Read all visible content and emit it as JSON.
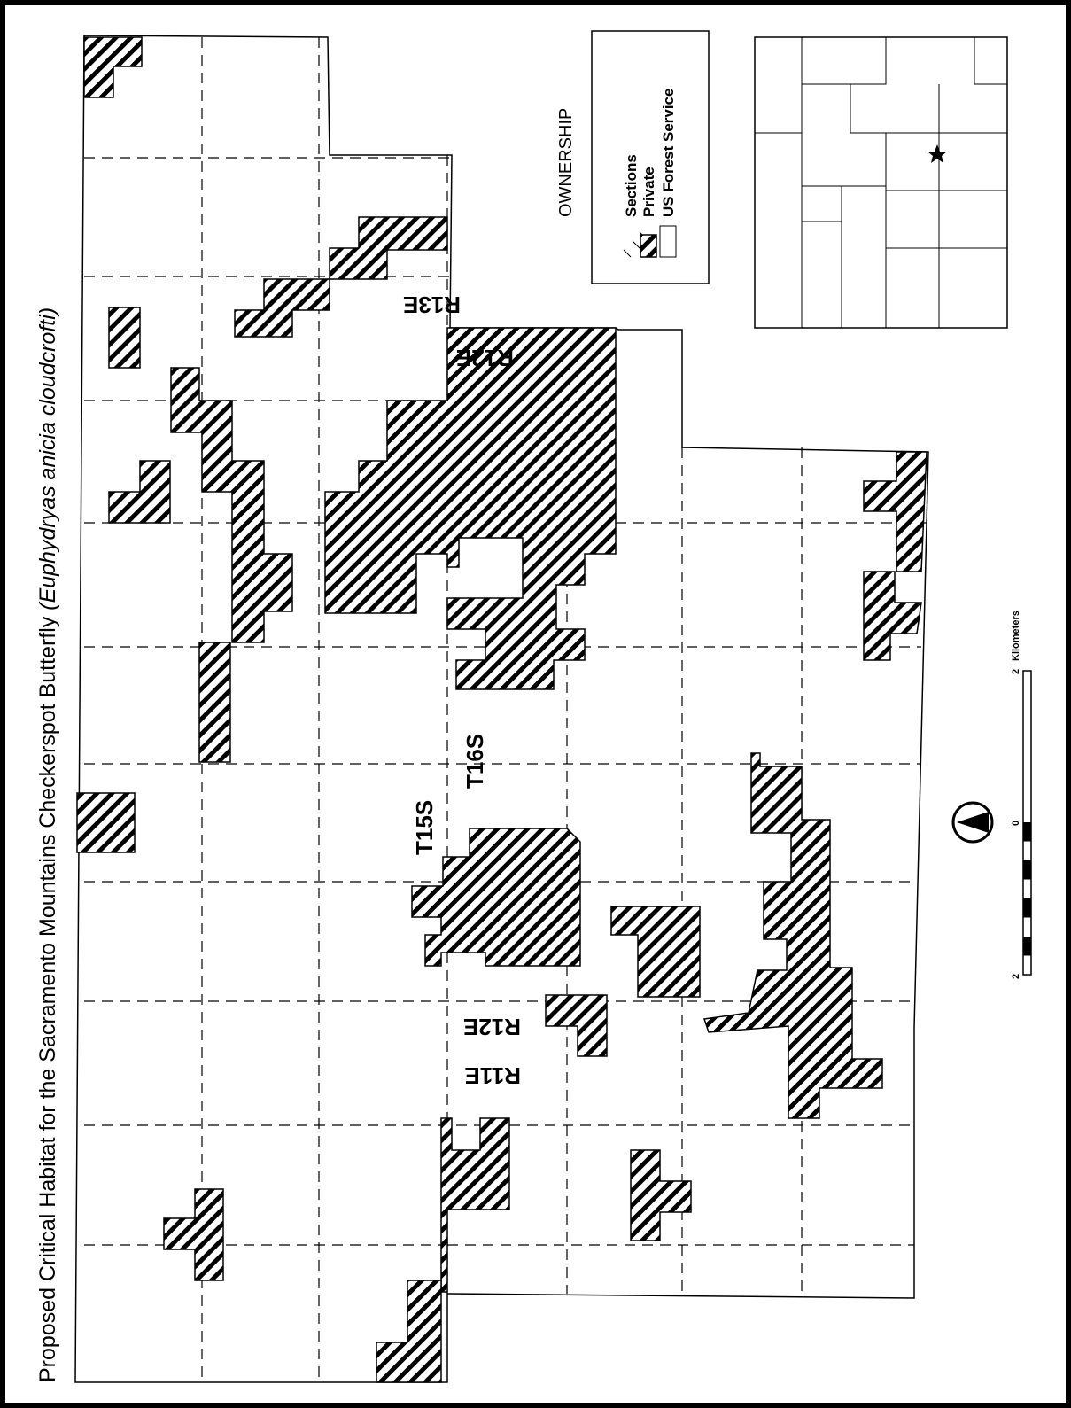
{
  "title": "Proposed Critical Habitat for the Sacramento Mountains Checkerspot Butterfly",
  "title_italic": "(Euphydryas anicia cloudcrofti)",
  "legend": {
    "heading": "OWNERSHIP",
    "items": [
      "Sections",
      "Private",
      "US Forest Service"
    ]
  },
  "labels": {
    "r13e": "R13E",
    "r12e_top": "R12E",
    "t15s": "T15S",
    "t16s": "T16S",
    "r12e_bottom": "R12E",
    "r11e": "R11E"
  },
  "scale": {
    "ticks": [
      2,
      0,
      2
    ],
    "unit": "Kilometers"
  }
}
